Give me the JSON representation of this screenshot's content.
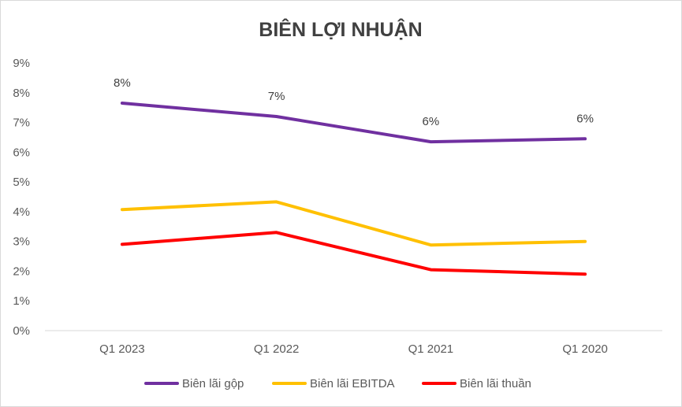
{
  "chart_data": {
    "type": "line",
    "title": "BIÊN LỢI NHUẬN",
    "categories": [
      "Q1 2023",
      "Q1 2022",
      "Q1 2021",
      "Q1 2020"
    ],
    "y_ticks": [
      "0%",
      "1%",
      "2%",
      "3%",
      "4%",
      "5%",
      "6%",
      "7%",
      "8%",
      "9%"
    ],
    "ylim": [
      0,
      9
    ],
    "grid": false,
    "legend": "bottom",
    "series": [
      {
        "name": "Biên lãi gộp",
        "color": "#7030A0",
        "values": [
          7.65,
          7.2,
          6.35,
          6.45
        ],
        "data_labels": [
          "8%",
          "7%",
          "6%",
          "6%"
        ]
      },
      {
        "name": "Biên lãi EBITDA",
        "color": "#FFC000",
        "values": [
          4.07,
          4.33,
          2.88,
          3.0
        ]
      },
      {
        "name": "Biên lãi thuần",
        "color": "#FF0000",
        "values": [
          2.9,
          3.3,
          2.05,
          1.9
        ]
      }
    ]
  }
}
